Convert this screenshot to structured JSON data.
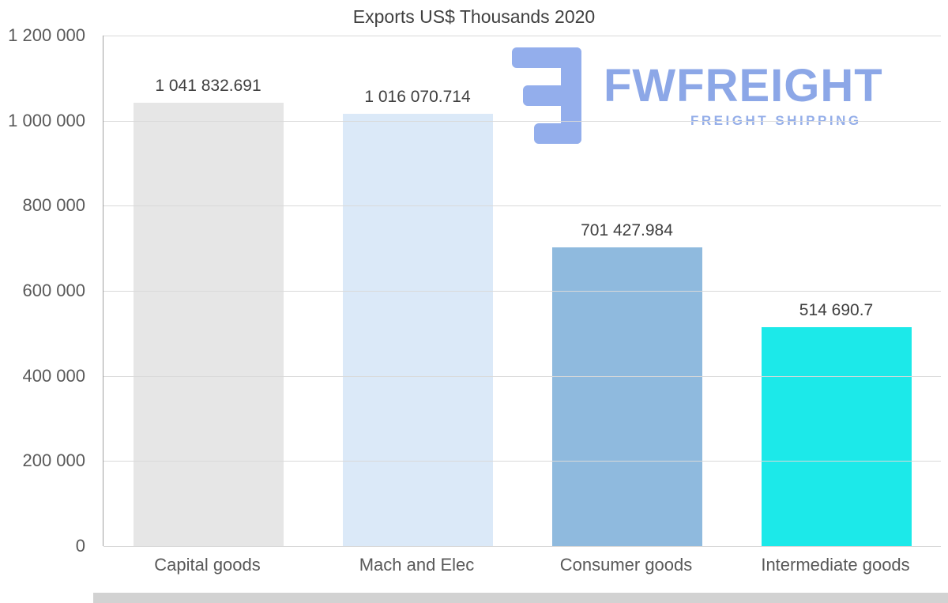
{
  "page": {
    "title": "Exports US$ Thousands 2020"
  },
  "logo": {
    "name": "FWFREIGHT",
    "tagline": "FREIGHT SHIPPING",
    "color": "#8ca7e7"
  },
  "chart_data": {
    "type": "bar",
    "title": "Exports US$ Thousands 2020",
    "categories": [
      "Capital goods",
      "Mach and Elec",
      "Consumer goods",
      "Intermediate goods"
    ],
    "values": [
      1041832.691,
      1016070.714,
      701427.984,
      514690.7
    ],
    "value_labels": [
      "1 041 832.691",
      "1 016 070.714",
      "701 427.984",
      "514 690.7"
    ],
    "bar_colors": [
      "#e6e6e6",
      "#dbe9f8",
      "#8fbade",
      "#1ce9e9"
    ],
    "xlabel": "",
    "ylabel": "",
    "ylim": [
      0,
      1200000
    ],
    "ytick_interval": 200000,
    "ytick_labels": [
      "1 200 000",
      "1 000 000",
      "800 000",
      "600 000",
      "400 000",
      "200 000",
      "0"
    ],
    "grid": true,
    "grid_color": "#d9d9d9",
    "legend": false
  }
}
